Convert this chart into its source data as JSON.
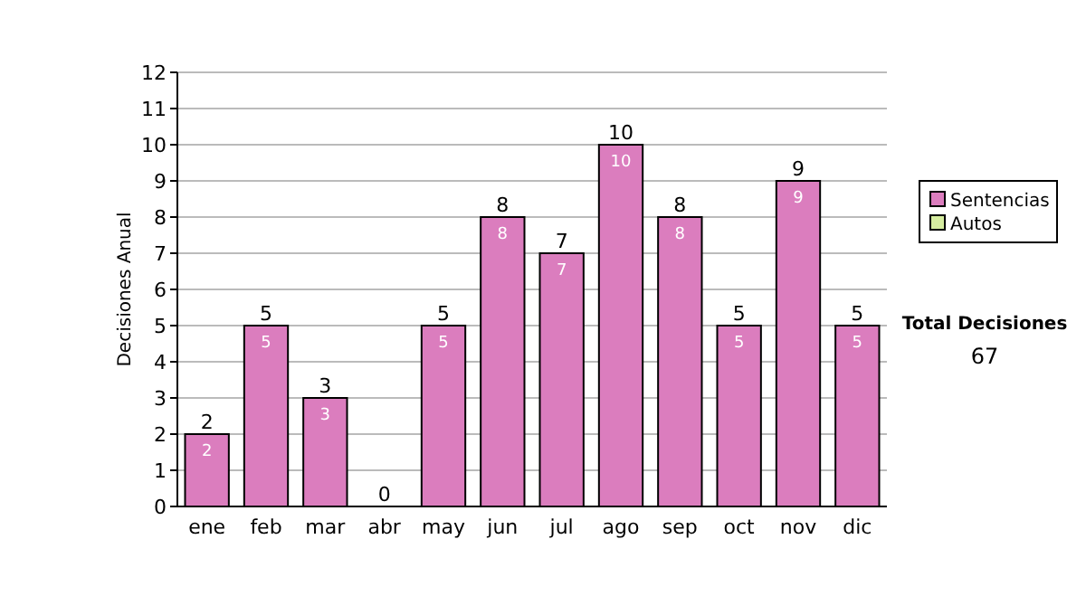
{
  "chart_data": {
    "type": "bar",
    "ylabel": "Decisiones Anual",
    "categories": [
      "ene",
      "feb",
      "mar",
      "abr",
      "may",
      "jun",
      "jul",
      "ago",
      "sep",
      "oct",
      "nov",
      "dic"
    ],
    "stacked": true,
    "series": [
      {
        "name": "Sentencias",
        "color": "#db7dbe",
        "values": [
          2,
          5,
          3,
          0,
          5,
          8,
          7,
          10,
          8,
          5,
          9,
          5
        ],
        "value_labels": [
          "2",
          "5",
          "3",
          null,
          "5",
          "8",
          "7",
          "10",
          "8",
          "5",
          "9",
          "5"
        ]
      },
      {
        "name": "Autos",
        "color": "#d6eda0",
        "values": [
          0,
          0,
          0,
          0,
          0,
          0,
          0,
          0,
          0,
          0,
          0,
          0
        ]
      }
    ],
    "totals": [
      "2",
      "5",
      "3",
      "0",
      "5",
      "8",
      "7",
      "10",
      "8",
      "5",
      "9",
      "5"
    ],
    "ylim": [
      0,
      12
    ],
    "yticks": [
      0,
      1,
      2,
      3,
      4,
      5,
      6,
      7,
      8,
      9,
      10,
      11,
      12
    ],
    "grid": "y",
    "legend": "right",
    "annotations": [
      "Total Decisiones",
      "67"
    ]
  }
}
